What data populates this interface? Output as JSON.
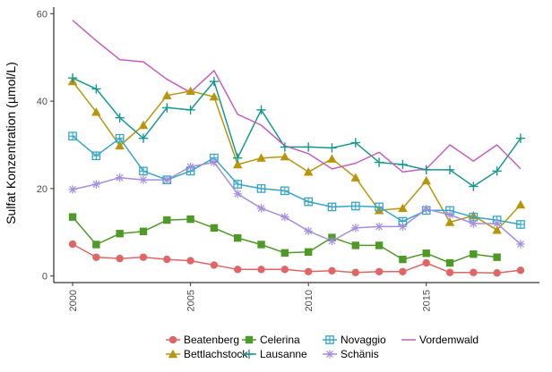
{
  "chart_data": {
    "type": "line",
    "ylabel": "Sulfat Konzentration (µmol/L)",
    "xlabel": "",
    "x": [
      2000,
      2001,
      2002,
      2003,
      2004,
      2005,
      2006,
      2007,
      2008,
      2009,
      2010,
      2011,
      2012,
      2013,
      2014,
      2015,
      2016,
      2017,
      2018,
      2019
    ],
    "xlim": [
      1999.2,
      2019.8
    ],
    "ylim": [
      -1.5,
      61.5
    ],
    "x_ticks": [
      2000,
      2005,
      2010,
      2015
    ],
    "y_ticks": [
      0,
      20,
      40,
      60
    ],
    "grid": false,
    "legend_position": "bottom",
    "series": [
      {
        "name": "Beatenberg",
        "color": "#e06666",
        "marker": "circle",
        "values": [
          7.3,
          4.3,
          4.0,
          4.3,
          3.8,
          3.5,
          2.5,
          1.5,
          1.5,
          1.5,
          1.0,
          1.2,
          0.8,
          1.0,
          1.0,
          3.0,
          0.8,
          0.8,
          0.7,
          1.3
        ]
      },
      {
        "name": "Bettlachstock",
        "color": "#b8960b",
        "marker": "triangle",
        "values": [
          44.5,
          37.5,
          29.8,
          34.5,
          41.3,
          42.3,
          41.0,
          25.5,
          27.0,
          27.3,
          23.8,
          26.8,
          22.5,
          15.0,
          15.5,
          21.8,
          12.3,
          13.8,
          10.5,
          16.3
        ]
      },
      {
        "name": "Celerina",
        "color": "#4e9a26",
        "marker": "square",
        "values": [
          13.5,
          7.2,
          9.7,
          10.2,
          12.8,
          13.0,
          11.0,
          8.7,
          7.2,
          5.3,
          5.5,
          8.8,
          7.0,
          7.0,
          3.8,
          5.2,
          3.0,
          5.0,
          4.3,
          null
        ]
      },
      {
        "name": "Lausanne",
        "color": "#16998f",
        "marker": "plus",
        "values": [
          45.3,
          42.8,
          36.2,
          31.5,
          38.5,
          38.0,
          44.5,
          27.0,
          38.0,
          29.5,
          29.5,
          29.3,
          30.5,
          26.0,
          25.5,
          24.3,
          24.3,
          20.5,
          24.0,
          31.5
        ]
      },
      {
        "name": "Novaggio",
        "color": "#36a6c8",
        "marker": "squarecross",
        "values": [
          32.0,
          27.5,
          31.5,
          24.0,
          22.0,
          24.0,
          27.0,
          21.0,
          20.0,
          19.5,
          17.0,
          15.8,
          16.0,
          15.8,
          12.5,
          15.0,
          15.0,
          13.5,
          12.8,
          11.8
        ]
      },
      {
        "name": "Schänis",
        "color": "#a58ee0",
        "marker": "star",
        "values": [
          19.8,
          21.0,
          22.5,
          22.0,
          22.0,
          25.0,
          26.0,
          18.8,
          15.5,
          13.5,
          10.3,
          8.0,
          11.0,
          11.3,
          11.3,
          15.3,
          14.0,
          12.0,
          12.0,
          7.3
        ]
      },
      {
        "name": "Vordemwald",
        "color": "#c35ec0",
        "marker": "none",
        "values": [
          58.5,
          53.8,
          49.5,
          49.0,
          45.0,
          42.0,
          47.0,
          37.0,
          34.5,
          29.8,
          28.0,
          24.5,
          25.8,
          28.3,
          23.8,
          24.5,
          30.0,
          26.3,
          30.0,
          24.5
        ]
      }
    ]
  }
}
